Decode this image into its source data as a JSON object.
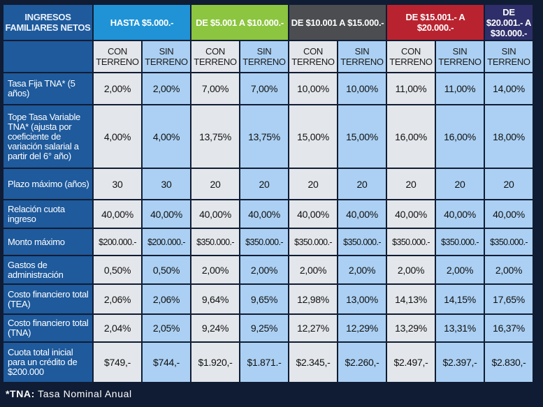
{
  "header": {
    "label": "INGRESOS FAMILIARES NETOS",
    "ranges": [
      "HASTA $5.000.-",
      "DE $5.001 A $10.000.-",
      "DE $10.001 A $15.000.-",
      "DE $15.001.- A $20.000.-",
      "DE $20.001.- A $30.000.-"
    ]
  },
  "subheaders": [
    "CON TERRENO",
    "SIN TERRENO",
    "CON TERRENO",
    "SIN TERRENO",
    "CON TERRENO",
    "SIN TERRENO",
    "CON TERRENO",
    "SIN TERRENO",
    "SIN TERRENO"
  ],
  "rows": [
    {
      "label": "Tasa Fija TNA* (5 años)",
      "values": [
        "2,00%",
        "2,00%",
        "7,00%",
        "7,00%",
        "10,00%",
        "10,00%",
        "11,00%",
        "11,00%",
        "14,00%"
      ]
    },
    {
      "label": "Tope Tasa Variable TNA* (ajusta por coeficiente de variación salarial a partir del 6° año)",
      "values": [
        "4,00%",
        "4,00%",
        "13,75%",
        "13,75%",
        "15,00%",
        "15,00%",
        "16,00%",
        "16,00%",
        "18,00%"
      ]
    },
    {
      "label": "Plazo máximo (años)",
      "values": [
        "30",
        "30",
        "20",
        "20",
        "20",
        "20",
        "20",
        "20",
        "20"
      ]
    },
    {
      "label": "Relación cuota ingreso",
      "values": [
        "40,00%",
        "40,00%",
        "40,00%",
        "40,00%",
        "40,00%",
        "40,00%",
        "40,00%",
        "40,00%",
        "40,00%"
      ]
    },
    {
      "label": "Monto máximo",
      "values": [
        "$200.000.-",
        "$200.000.-",
        "$350.000.-",
        "$350.000.-",
        "$350.000.-",
        "$350.000.-",
        "$350.000.-",
        "$350.000.-",
        "$350.000.-"
      ]
    },
    {
      "label": "Gastos de administración",
      "values": [
        "0,50%",
        "0,50%",
        "2,00%",
        "2,00%",
        "2,00%",
        "2,00%",
        "2,00%",
        "2,00%",
        "2,00%"
      ]
    },
    {
      "label": "Costo financiero total (TEA)",
      "values": [
        "2,06%",
        "2,06%",
        "9,64%",
        "9,65%",
        "12,98%",
        "13,00%",
        "14,13%",
        "14,15%",
        "17,65%"
      ]
    },
    {
      "label": "Costo financiero total (TNA)",
      "values": [
        "2,04%",
        "2,05%",
        "9,24%",
        "9,25%",
        "12,27%",
        "12,29%",
        "13,29%",
        "13,31%",
        "16,37%"
      ]
    },
    {
      "label": "Cuota total inicial para un crédito de $200.000",
      "values": [
        "$749,-",
        "$744,-",
        "$1.920,-",
        "$1.871.-",
        "$2.345,-",
        "$2.260,-",
        "$2.497,-",
        "$2.397,-",
        "$2.830,-"
      ]
    }
  ],
  "footnote": {
    "term": "*TNA:",
    "text": "Tasa Nominal Anual"
  },
  "colors": {
    "label_blue": "#1e5a9c",
    "c1": "#1f93d6",
    "c2": "#8cc53f",
    "c3": "#4b4d50",
    "c4": "#b9232f",
    "c5": "#2e2f6a",
    "con_bg": "#e3e6ea",
    "sin_bg": "#abd0f3"
  }
}
